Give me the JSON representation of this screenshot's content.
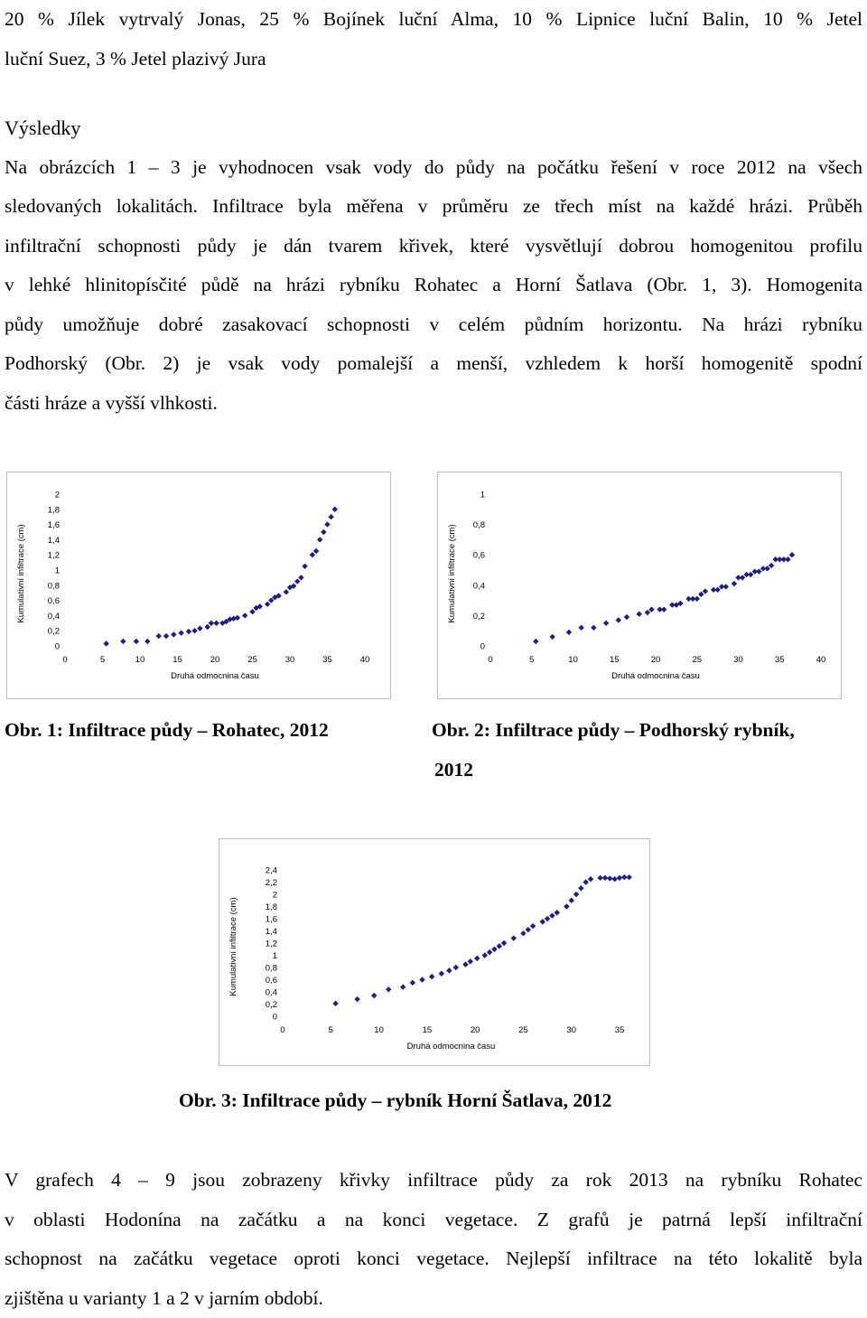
{
  "top_text": {
    "lines": [
      "20 % Jílek vytrvalý Jonas, 25 % Bojínek luční Alma, 10 % Lipnice luční Balin, 10 % Jetel",
      "luční Suez, 3 % Jetel plazivý Jura"
    ]
  },
  "results": {
    "heading": "Výsledky",
    "lines": [
      "Na obrázcích 1 – 3 je vyhodnocen vsak vody do půdy na počátku řešení v roce 2012 na všech",
      "sledovaných lokalitách. Infiltrace byla měřena v průměru ze třech míst na každé hrázi. Průběh",
      "infiltrační schopnosti půdy je dán tvarem křivek, které vysvětlují dobrou homogenitou profilu",
      "v lehké hlinitopísčité půdě na hrázi rybníku Rohatec a Horní Šatlava (Obr. 1, 3). Homogenita",
      "půdy umožňuje dobré zasakovací schopnosti v celém půdním horizontu. Na hrázi rybníku",
      "Podhorský (Obr. 2) je vsak vody pomalejší a menší, vzhledem k horší homogenitě spodní",
      "části hráze a vyšší vlhkosti."
    ]
  },
  "captions": {
    "fig1": "Obr. 1: Infiltrace půdy – Rohatec, 2012",
    "fig2_line1": "Obr. 2: Infiltrace půdy – Podhorský rybník,",
    "fig2_line2": "2012",
    "fig3": "Obr. 3: Infiltrace půdy – rybník Horní Šatlava, 2012"
  },
  "bottom_text": {
    "lines": [
      "V grafech 4 – 9 jsou zobrazeny křivky infiltrace půdy za rok 2013 na rybníku Rohatec",
      "v oblasti Hodonína na začátku a na konci vegetace. Z grafů je patrná lepší infiltrační",
      "schopnost na začátku vegetace oproti konci vegetace. Nejlepší infiltrace na této lokalitě byla",
      "zjištěna u varianty 1 a 2 v jarním období."
    ]
  },
  "marker_color": "#1f1f7a",
  "chart_data": [
    {
      "type": "scatter",
      "xlabel": "Druhá odmocnina času",
      "ylabel": "Kumulativní infiltrace (cm)",
      "xlim": [
        0,
        40
      ],
      "ylim": [
        0,
        2
      ],
      "x_ticks": [
        "0",
        "5",
        "10",
        "15",
        "20",
        "25",
        "30",
        "35",
        "40"
      ],
      "y_ticks": [
        "0",
        "0,2",
        "0,4",
        "0,6",
        "0,8",
        "1",
        "1,2",
        "1,4",
        "1,6",
        "1,8",
        "2"
      ],
      "x": [
        5.5,
        7.75,
        9.5,
        11,
        12.5,
        13.5,
        14.5,
        15.5,
        16.5,
        17.3,
        18,
        19,
        19.5,
        20.2,
        21,
        21.5,
        22,
        22.5,
        23,
        24,
        25,
        25.5,
        26,
        27,
        27.5,
        28,
        28.5,
        29.5,
        30,
        30.5,
        31,
        31.5,
        32,
        33,
        33.5,
        34,
        34.5,
        35,
        35.5,
        36
      ],
      "y": [
        0.03,
        0.06,
        0.06,
        0.06,
        0.13,
        0.13,
        0.15,
        0.17,
        0.19,
        0.2,
        0.23,
        0.25,
        0.3,
        0.3,
        0.3,
        0.32,
        0.35,
        0.36,
        0.37,
        0.4,
        0.45,
        0.5,
        0.52,
        0.55,
        0.6,
        0.64,
        0.66,
        0.71,
        0.77,
        0.79,
        0.85,
        0.9,
        1.05,
        1.2,
        1.25,
        1.4,
        1.5,
        1.6,
        1.7,
        1.8
      ]
    },
    {
      "type": "scatter",
      "xlabel": "Druhá odmocnina času",
      "ylabel": "Kumulativní infiltrace (cm)",
      "xlim": [
        0,
        40
      ],
      "ylim": [
        0,
        1
      ],
      "x_ticks": [
        "0",
        "5",
        "10",
        "15",
        "20",
        "25",
        "30",
        "35",
        "40"
      ],
      "y_ticks": [
        "0",
        "0,2",
        "0,4",
        "0,6",
        "0,8",
        "1"
      ],
      "x": [
        5.5,
        7.5,
        9.5,
        11,
        12.5,
        14,
        15.5,
        16.5,
        18,
        19,
        19.5,
        20.5,
        21,
        22,
        22.5,
        23,
        24,
        24.5,
        25,
        25.5,
        26,
        27,
        27.5,
        28,
        28.5,
        29.5,
        30,
        30.5,
        31,
        31.5,
        32,
        32.5,
        33,
        33.5,
        34,
        34.5,
        35,
        35.5,
        36,
        36.5
      ],
      "y": [
        0.03,
        0.06,
        0.09,
        0.12,
        0.12,
        0.15,
        0.17,
        0.19,
        0.21,
        0.22,
        0.24,
        0.24,
        0.24,
        0.27,
        0.27,
        0.28,
        0.31,
        0.31,
        0.31,
        0.34,
        0.36,
        0.37,
        0.37,
        0.39,
        0.39,
        0.41,
        0.45,
        0.45,
        0.47,
        0.47,
        0.49,
        0.49,
        0.51,
        0.51,
        0.53,
        0.57,
        0.57,
        0.57,
        0.57,
        0.6
      ]
    },
    {
      "type": "scatter",
      "xlabel": "Druhá odmocnina času",
      "ylabel": "Kumulativní infiltrace (cm)",
      "xlim": [
        0,
        35
      ],
      "ylim": [
        0,
        2.4
      ],
      "x_ticks": [
        "0",
        "5",
        "10",
        "15",
        "20",
        "25",
        "30",
        "35"
      ],
      "y_ticks": [
        "0",
        "0,2",
        "0,4",
        "0,6",
        "0,8",
        "1",
        "1,2",
        "1,4",
        "1,6",
        "1,8",
        "2",
        "2,2",
        "2,4"
      ],
      "x": [
        5.5,
        7.75,
        9.5,
        11,
        12.5,
        13.5,
        14.5,
        15.5,
        16.5,
        17.3,
        18,
        19,
        19.5,
        20.2,
        21,
        21.5,
        22,
        22.5,
        23,
        24,
        25,
        25.5,
        26,
        27,
        27.5,
        28,
        28.5,
        29.5,
        30,
        30.5,
        31,
        31.5,
        32,
        33,
        33.5,
        34,
        34.5,
        35,
        35.5,
        36
      ],
      "y": [
        0.21,
        0.28,
        0.34,
        0.44,
        0.48,
        0.55,
        0.6,
        0.65,
        0.7,
        0.75,
        0.8,
        0.85,
        0.9,
        0.95,
        1.0,
        1.05,
        1.1,
        1.15,
        1.2,
        1.28,
        1.36,
        1.42,
        1.48,
        1.55,
        1.6,
        1.65,
        1.7,
        1.8,
        1.9,
        2.0,
        2.1,
        2.2,
        2.25,
        2.27,
        2.27,
        2.26,
        2.25,
        2.27,
        2.28,
        2.28
      ]
    }
  ]
}
